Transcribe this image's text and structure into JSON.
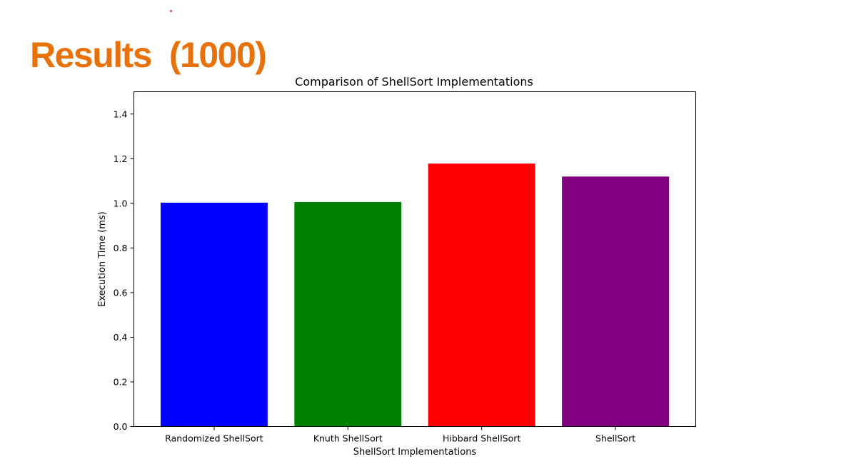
{
  "slide": {
    "title": "Results  (1000)",
    "title_color": "#E8710A",
    "dot_color": "#E03030"
  },
  "chart_data": {
    "type": "bar",
    "title": "Comparison of ShellSort Implementations",
    "xlabel": "ShellSort Implementations",
    "ylabel": "Execution Time (ms)",
    "categories": [
      "Randomized ShellSort",
      "Knuth ShellSort",
      "Hibbard ShellSort",
      "ShellSort"
    ],
    "values": [
      1.003,
      1.006,
      1.178,
      1.12
    ],
    "colors": [
      "#0000FF",
      "#008000",
      "#FF0000",
      "#800080"
    ],
    "ylim": [
      0,
      1.5
    ],
    "yticks": [
      0.0,
      0.2,
      0.4,
      0.6,
      0.8,
      1.0,
      1.2,
      1.4
    ],
    "ytick_labels": [
      "0.0",
      "0.2",
      "0.4",
      "0.6",
      "0.8",
      "1.0",
      "1.2",
      "1.4"
    ],
    "grid": false,
    "legend": "none"
  }
}
